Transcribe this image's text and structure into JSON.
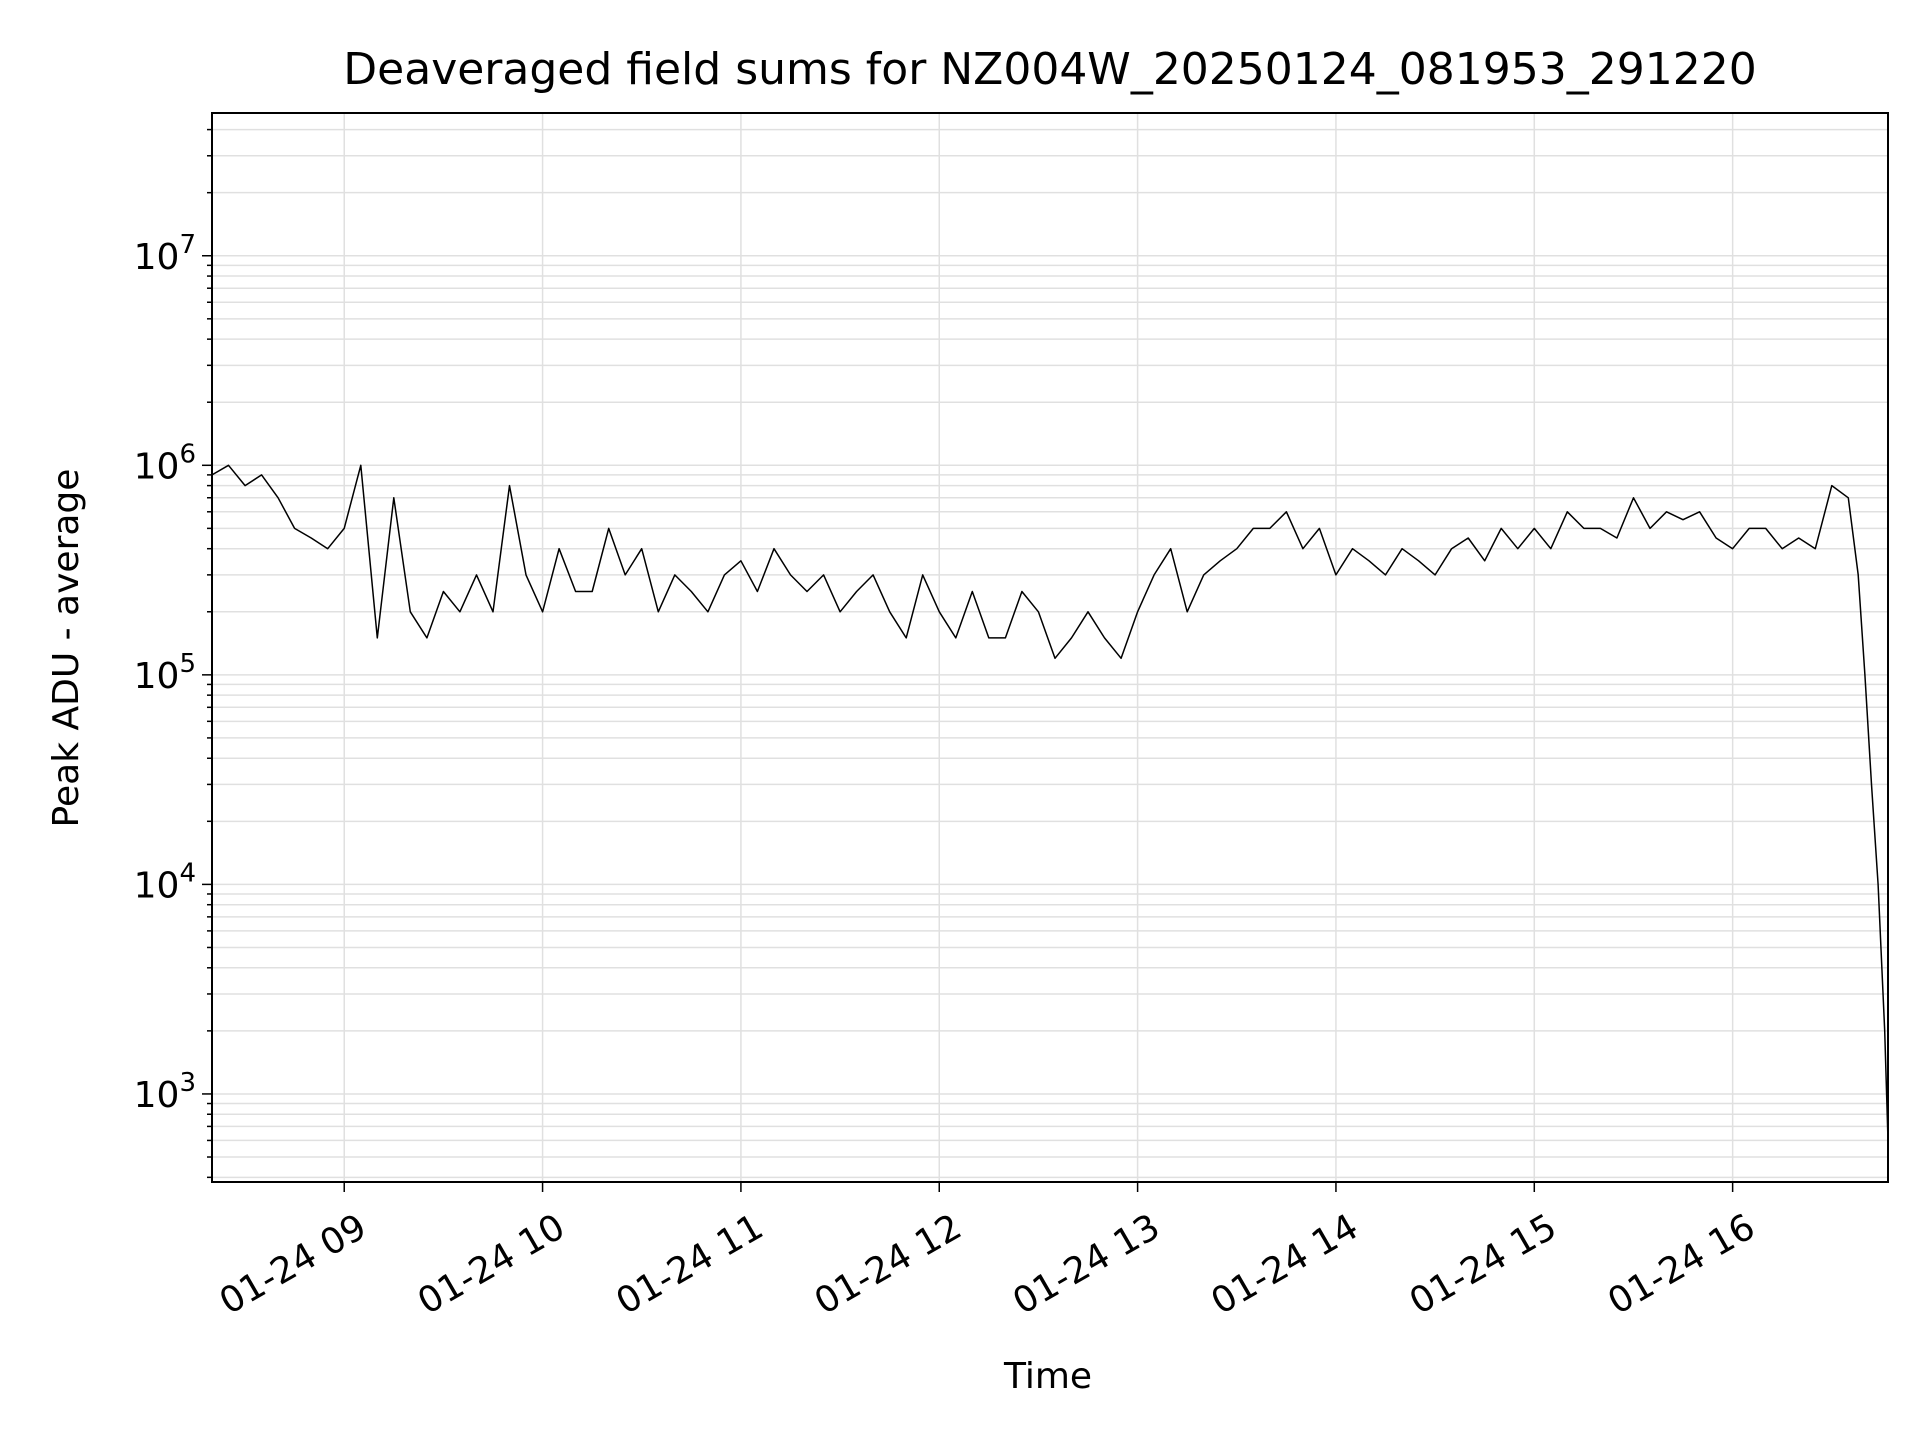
{
  "chart_data": {
    "type": "line",
    "title": "Deaveraged field sums for NZ004W_20250124_081953_291220",
    "xlabel": "Time",
    "ylabel": "Peak ADU - average",
    "yscale": "log",
    "ylim": [
      380,
      48000000
    ],
    "xlim": [
      "2025-01-24 08:20",
      "2025-01-24 16:47"
    ],
    "grid": true,
    "line_color": "#000000",
    "grid_color": "#e0e0e0",
    "x_tick_labels": [
      "01-24 09",
      "01-24 10",
      "01-24 11",
      "01-24 12",
      "01-24 13",
      "01-24 14",
      "01-24 15",
      "01-24 16"
    ],
    "y_tick_labels": [
      {
        "base": "10",
        "exp": "3",
        "value": 1000
      },
      {
        "base": "10",
        "exp": "4",
        "value": 10000
      },
      {
        "base": "10",
        "exp": "5",
        "value": 100000
      },
      {
        "base": "10",
        "exp": "6",
        "value": 1000000
      },
      {
        "base": "10",
        "exp": "7",
        "value": 10000000
      }
    ],
    "series": [
      {
        "x": [
          "2025-01-24 08:20",
          "2025-01-24 08:25",
          "2025-01-24 08:30",
          "2025-01-24 08:35",
          "2025-01-24 08:40",
          "2025-01-24 08:45",
          "2025-01-24 08:50",
          "2025-01-24 08:55",
          "2025-01-24 09:00",
          "2025-01-24 09:05",
          "2025-01-24 09:10",
          "2025-01-24 09:15",
          "2025-01-24 09:20",
          "2025-01-24 09:25",
          "2025-01-24 09:30",
          "2025-01-24 09:35",
          "2025-01-24 09:40",
          "2025-01-24 09:45",
          "2025-01-24 09:50",
          "2025-01-24 09:55",
          "2025-01-24 10:00",
          "2025-01-24 10:05",
          "2025-01-24 10:10",
          "2025-01-24 10:15",
          "2025-01-24 10:20",
          "2025-01-24 10:25",
          "2025-01-24 10:30",
          "2025-01-24 10:35",
          "2025-01-24 10:40",
          "2025-01-24 10:45",
          "2025-01-24 10:50",
          "2025-01-24 10:55",
          "2025-01-24 11:00",
          "2025-01-24 11:05",
          "2025-01-24 11:10",
          "2025-01-24 11:15",
          "2025-01-24 11:20",
          "2025-01-24 11:25",
          "2025-01-24 11:30",
          "2025-01-24 11:35",
          "2025-01-24 11:40",
          "2025-01-24 11:45",
          "2025-01-24 11:50",
          "2025-01-24 11:55",
          "2025-01-24 12:00",
          "2025-01-24 12:05",
          "2025-01-24 12:10",
          "2025-01-24 12:15",
          "2025-01-24 12:20",
          "2025-01-24 12:25",
          "2025-01-24 12:30",
          "2025-01-24 12:35",
          "2025-01-24 12:40",
          "2025-01-24 12:45",
          "2025-01-24 12:50",
          "2025-01-24 12:55",
          "2025-01-24 13:00",
          "2025-01-24 13:05",
          "2025-01-24 13:10",
          "2025-01-24 13:15",
          "2025-01-24 13:20",
          "2025-01-24 13:25",
          "2025-01-24 13:30",
          "2025-01-24 13:35",
          "2025-01-24 13:40",
          "2025-01-24 13:45",
          "2025-01-24 13:50",
          "2025-01-24 13:55",
          "2025-01-24 14:00",
          "2025-01-24 14:05",
          "2025-01-24 14:10",
          "2025-01-24 14:15",
          "2025-01-24 14:20",
          "2025-01-24 14:25",
          "2025-01-24 14:30",
          "2025-01-24 14:35",
          "2025-01-24 14:40",
          "2025-01-24 14:45",
          "2025-01-24 14:50",
          "2025-01-24 14:55",
          "2025-01-24 15:00",
          "2025-01-24 15:05",
          "2025-01-24 15:10",
          "2025-01-24 15:15",
          "2025-01-24 15:20",
          "2025-01-24 15:25",
          "2025-01-24 15:30",
          "2025-01-24 15:35",
          "2025-01-24 15:40",
          "2025-01-24 15:45",
          "2025-01-24 15:50",
          "2025-01-24 15:55",
          "2025-01-24 16:00",
          "2025-01-24 16:05",
          "2025-01-24 16:10",
          "2025-01-24 16:15",
          "2025-01-24 16:20",
          "2025-01-24 16:25",
          "2025-01-24 16:30",
          "2025-01-24 16:35",
          "2025-01-24 16:38",
          "2025-01-24 16:40",
          "2025-01-24 16:42",
          "2025-01-24 16:44",
          "2025-01-24 16:46",
          "2025-01-24 16:47"
        ],
        "y": [
          900000,
          1000000,
          800000,
          900000,
          700000,
          500000,
          450000,
          400000,
          500000,
          1000000,
          150000,
          700000,
          200000,
          150000,
          250000,
          200000,
          300000,
          200000,
          800000,
          300000,
          200000,
          400000,
          250000,
          250000,
          500000,
          300000,
          400000,
          200000,
          300000,
          250000,
          200000,
          300000,
          350000,
          250000,
          400000,
          300000,
          250000,
          300000,
          200000,
          250000,
          300000,
          200000,
          150000,
          300000,
          200000,
          150000,
          250000,
          150000,
          150000,
          250000,
          200000,
          120000,
          150000,
          200000,
          150000,
          120000,
          200000,
          300000,
          400000,
          200000,
          300000,
          350000,
          400000,
          500000,
          500000,
          600000,
          400000,
          500000,
          300000,
          400000,
          350000,
          300000,
          400000,
          350000,
          300000,
          400000,
          450000,
          350000,
          500000,
          400000,
          500000,
          400000,
          600000,
          500000,
          500000,
          450000,
          700000,
          500000,
          600000,
          550000,
          600000,
          450000,
          400000,
          500000,
          500000,
          400000,
          450000,
          400000,
          800000,
          700000,
          300000,
          100000,
          30000,
          10000,
          2000,
          600
        ]
      }
    ]
  }
}
